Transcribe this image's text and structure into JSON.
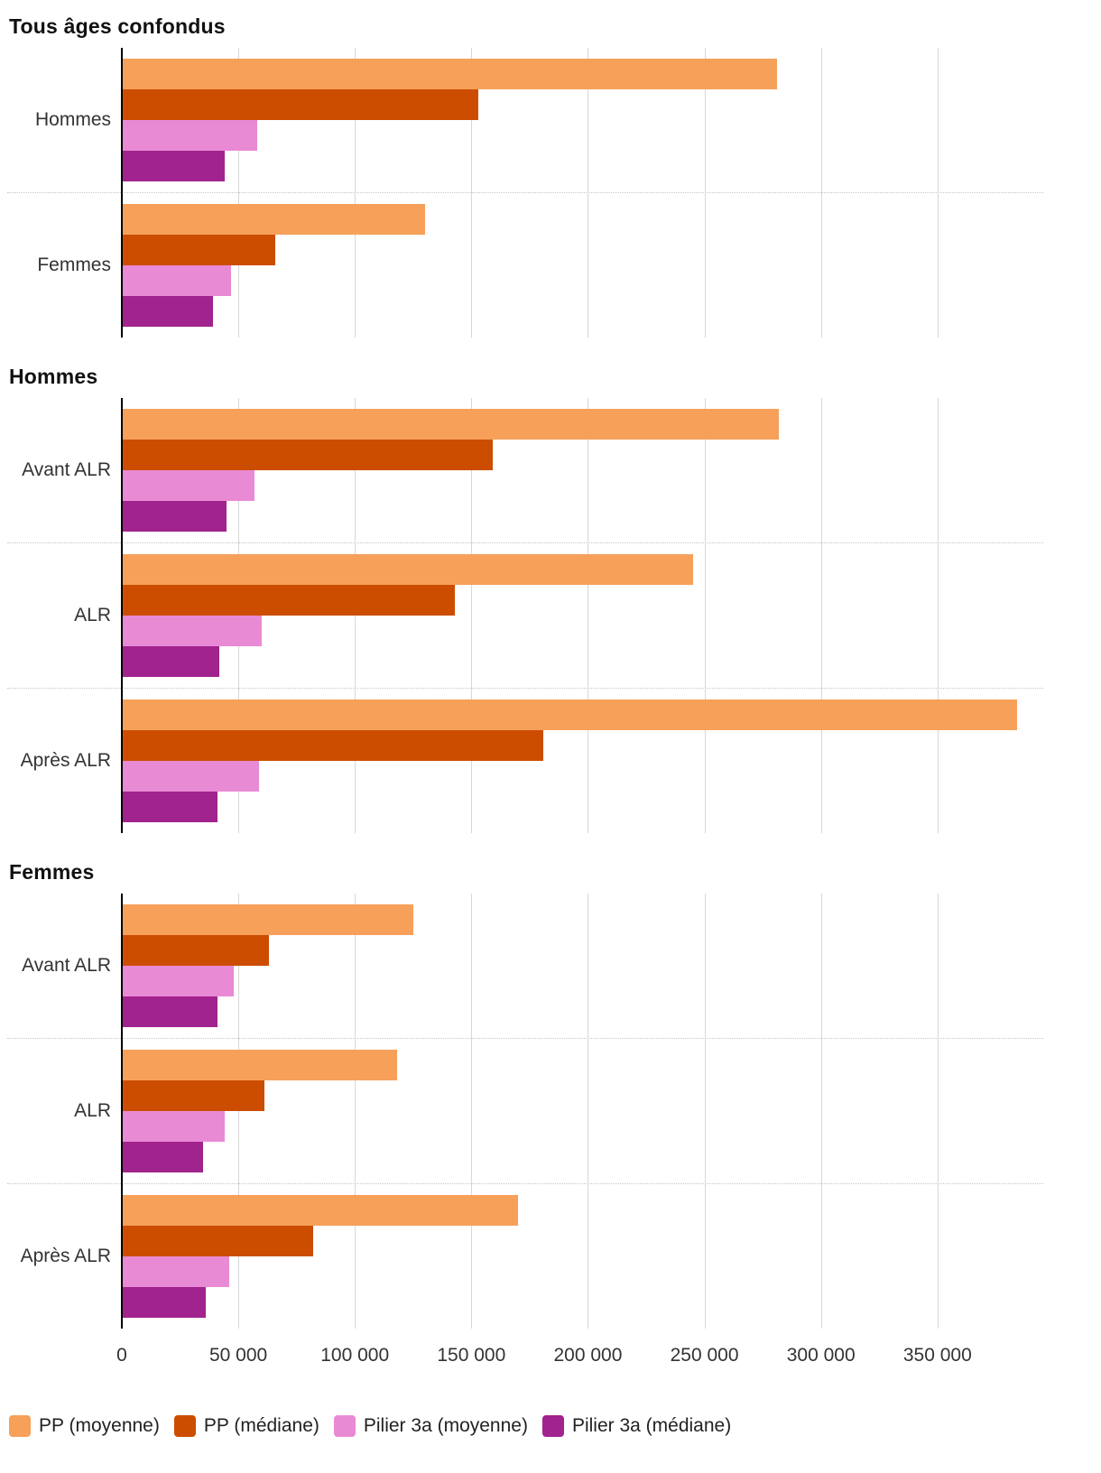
{
  "chart_data": {
    "type": "bar",
    "orientation": "horizontal",
    "xlim": [
      0,
      395000
    ],
    "x_ticks": [
      0,
      50000,
      100000,
      150000,
      200000,
      250000,
      300000,
      350000
    ],
    "x_tick_labels": [
      "0",
      "50 000",
      "100 000",
      "150 000",
      "200 000",
      "250 000",
      "300 000",
      "350 000"
    ],
    "grid": "vertical",
    "legend_position": "bottom",
    "series_names": [
      "PP (moyenne)",
      "PP (médiane)",
      "Pilier 3a (moyenne)",
      "Pilier 3a (médiane)"
    ],
    "series_colors": [
      "#F6A05A",
      "#CC4D00",
      "#E98AD5",
      "#A1238E"
    ],
    "sections": [
      {
        "title": "Tous âges confondus",
        "categories": [
          "Hommes",
          "Femmes"
        ],
        "values": [
          [
            281000,
            153000,
            58000,
            44000
          ],
          [
            130000,
            66000,
            47000,
            39000
          ]
        ]
      },
      {
        "title": "Hommes",
        "categories": [
          "Avant ALR",
          "ALR",
          "Après ALR"
        ],
        "values": [
          [
            282000,
            159000,
            57000,
            45000
          ],
          [
            245000,
            143000,
            60000,
            42000
          ],
          [
            384000,
            181000,
            59000,
            41000
          ]
        ]
      },
      {
        "title": "Femmes",
        "categories": [
          "Avant ALR",
          "ALR",
          "Après ALR"
        ],
        "values": [
          [
            125000,
            63000,
            48000,
            41000
          ],
          [
            118000,
            61000,
            44000,
            35000
          ],
          [
            170000,
            82000,
            46000,
            36000
          ]
        ]
      }
    ],
    "legend": [
      {
        "label": "PP (moyenne)",
        "color": "#F6A05A"
      },
      {
        "label": "PP (médiane)",
        "color": "#CC4D00"
      },
      {
        "label": "Pilier 3a (moyenne)",
        "color": "#E98AD5"
      },
      {
        "label": "Pilier 3a (médiane)",
        "color": "#A1238E"
      }
    ]
  }
}
